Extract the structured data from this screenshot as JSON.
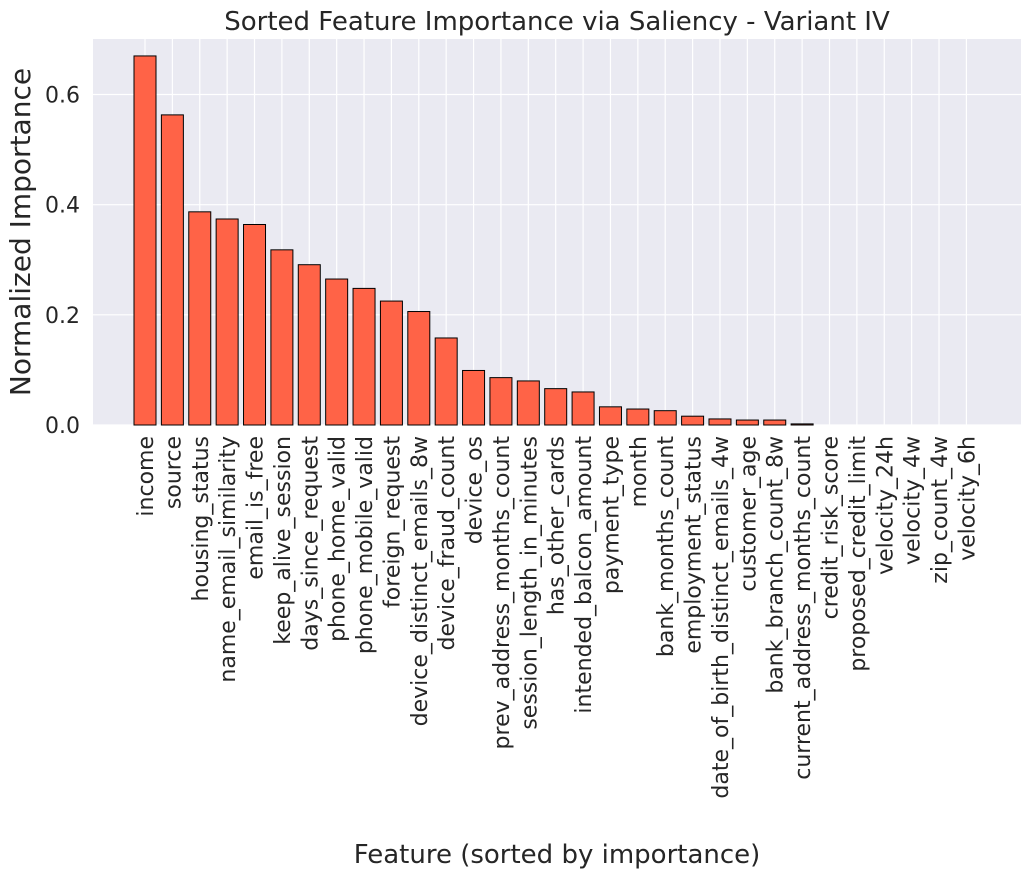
{
  "chart_data": {
    "type": "bar",
    "title": "Sorted Feature Importance via Saliency - Variant IV",
    "xlabel": "Feature (sorted by importance)",
    "ylabel": "Normalized Importance",
    "ylim": [
      0,
      0.7
    ],
    "yticks": [
      0.0,
      0.2,
      0.4,
      0.6
    ],
    "ytick_labels": [
      "0.0",
      "0.2",
      "0.4",
      "0.6"
    ],
    "grid": true,
    "legend": "none",
    "bar_color": "#ff6347",
    "edge_color": "#000000",
    "background_color": "#eaeaf2",
    "categories": [
      "income",
      "source",
      "housing_status",
      "name_email_similarity",
      "email_is_free",
      "keep_alive_session",
      "days_since_request",
      "phone_home_valid",
      "phone_mobile_valid",
      "foreign_request",
      "device_distinct_emails_8w",
      "device_fraud_count",
      "device_os",
      "prev_address_months_count",
      "session_length_in_minutes",
      "has_other_cards",
      "intended_balcon_amount",
      "payment_type",
      "month",
      "bank_months_count",
      "employment_status",
      "date_of_birth_distinct_emails_4w",
      "customer_age",
      "bank_branch_count_8w",
      "current_address_months_count",
      "credit_risk_score",
      "proposed_credit_limit",
      "velocity_24h",
      "velocity_4w",
      "zip_count_4w",
      "velocity_6h"
    ],
    "values": [
      0.67,
      0.563,
      0.387,
      0.374,
      0.364,
      0.318,
      0.291,
      0.265,
      0.248,
      0.225,
      0.206,
      0.158,
      0.099,
      0.086,
      0.08,
      0.066,
      0.06,
      0.033,
      0.029,
      0.026,
      0.016,
      0.011,
      0.009,
      0.009,
      0.002,
      0.0,
      0.0,
      0.0,
      0.0,
      0.0,
      0.0
    ]
  }
}
